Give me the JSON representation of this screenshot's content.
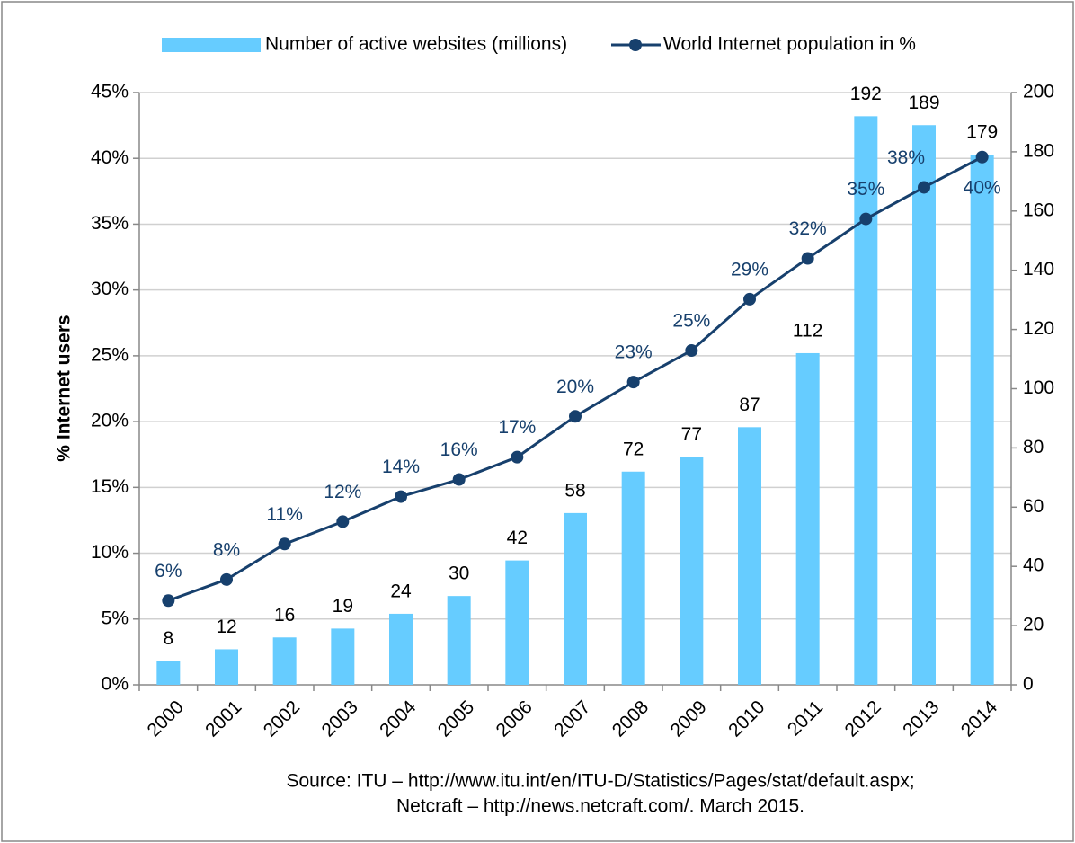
{
  "chart_data": {
    "type": "bar-line",
    "categories": [
      "2000",
      "2001",
      "2002",
      "2003",
      "2004",
      "2005",
      "2006",
      "2007",
      "2008",
      "2009",
      "2010",
      "2011",
      "2012",
      "2013",
      "2014"
    ],
    "series": [
      {
        "name": "Number of active websites (millions)",
        "type": "bar",
        "axis": "y2",
        "color": "#66ccff",
        "values": [
          8,
          12,
          16,
          19,
          24,
          30,
          42,
          58,
          72,
          77,
          87,
          112,
          192,
          189,
          179
        ]
      },
      {
        "name": "World Internet population in %",
        "type": "line",
        "axis": "y",
        "color": "#17406d",
        "values": [
          6.4,
          8.0,
          10.7,
          12.4,
          14.3,
          15.6,
          17.3,
          20.4,
          23.0,
          25.4,
          29.3,
          32.4,
          35.4,
          37.8,
          40.1
        ],
        "value_labels": [
          "6%",
          "8%",
          "11%",
          "12%",
          "14%",
          "16%",
          "17%",
          "20%",
          "23%",
          "25%",
          "29%",
          "32%",
          "35%",
          "38%",
          "40%"
        ]
      }
    ],
    "ylabel": "% Internet users",
    "ylim": [
      0,
      45
    ],
    "yticks": [
      {
        "value": 0,
        "label": "0%"
      },
      {
        "value": 5,
        "label": "5%"
      },
      {
        "value": 10,
        "label": "10%"
      },
      {
        "value": 15,
        "label": "15%"
      },
      {
        "value": 20,
        "label": "20%"
      },
      {
        "value": 25,
        "label": "25%"
      },
      {
        "value": 30,
        "label": "30%"
      },
      {
        "value": 35,
        "label": "35%"
      },
      {
        "value": 40,
        "label": "40%"
      },
      {
        "value": 45,
        "label": "45%"
      }
    ],
    "y2lim": [
      0,
      200
    ],
    "y2ticks": [
      0,
      20,
      40,
      60,
      80,
      100,
      120,
      140,
      160,
      180,
      200
    ],
    "grid": true,
    "legend": "top",
    "source": [
      "Source: ITU – http://www.itu.int/en/ITU-D/Statistics/Pages/stat/default.aspx;",
      "Netcraft – http://news.netcraft.com/. March 2015."
    ]
  }
}
